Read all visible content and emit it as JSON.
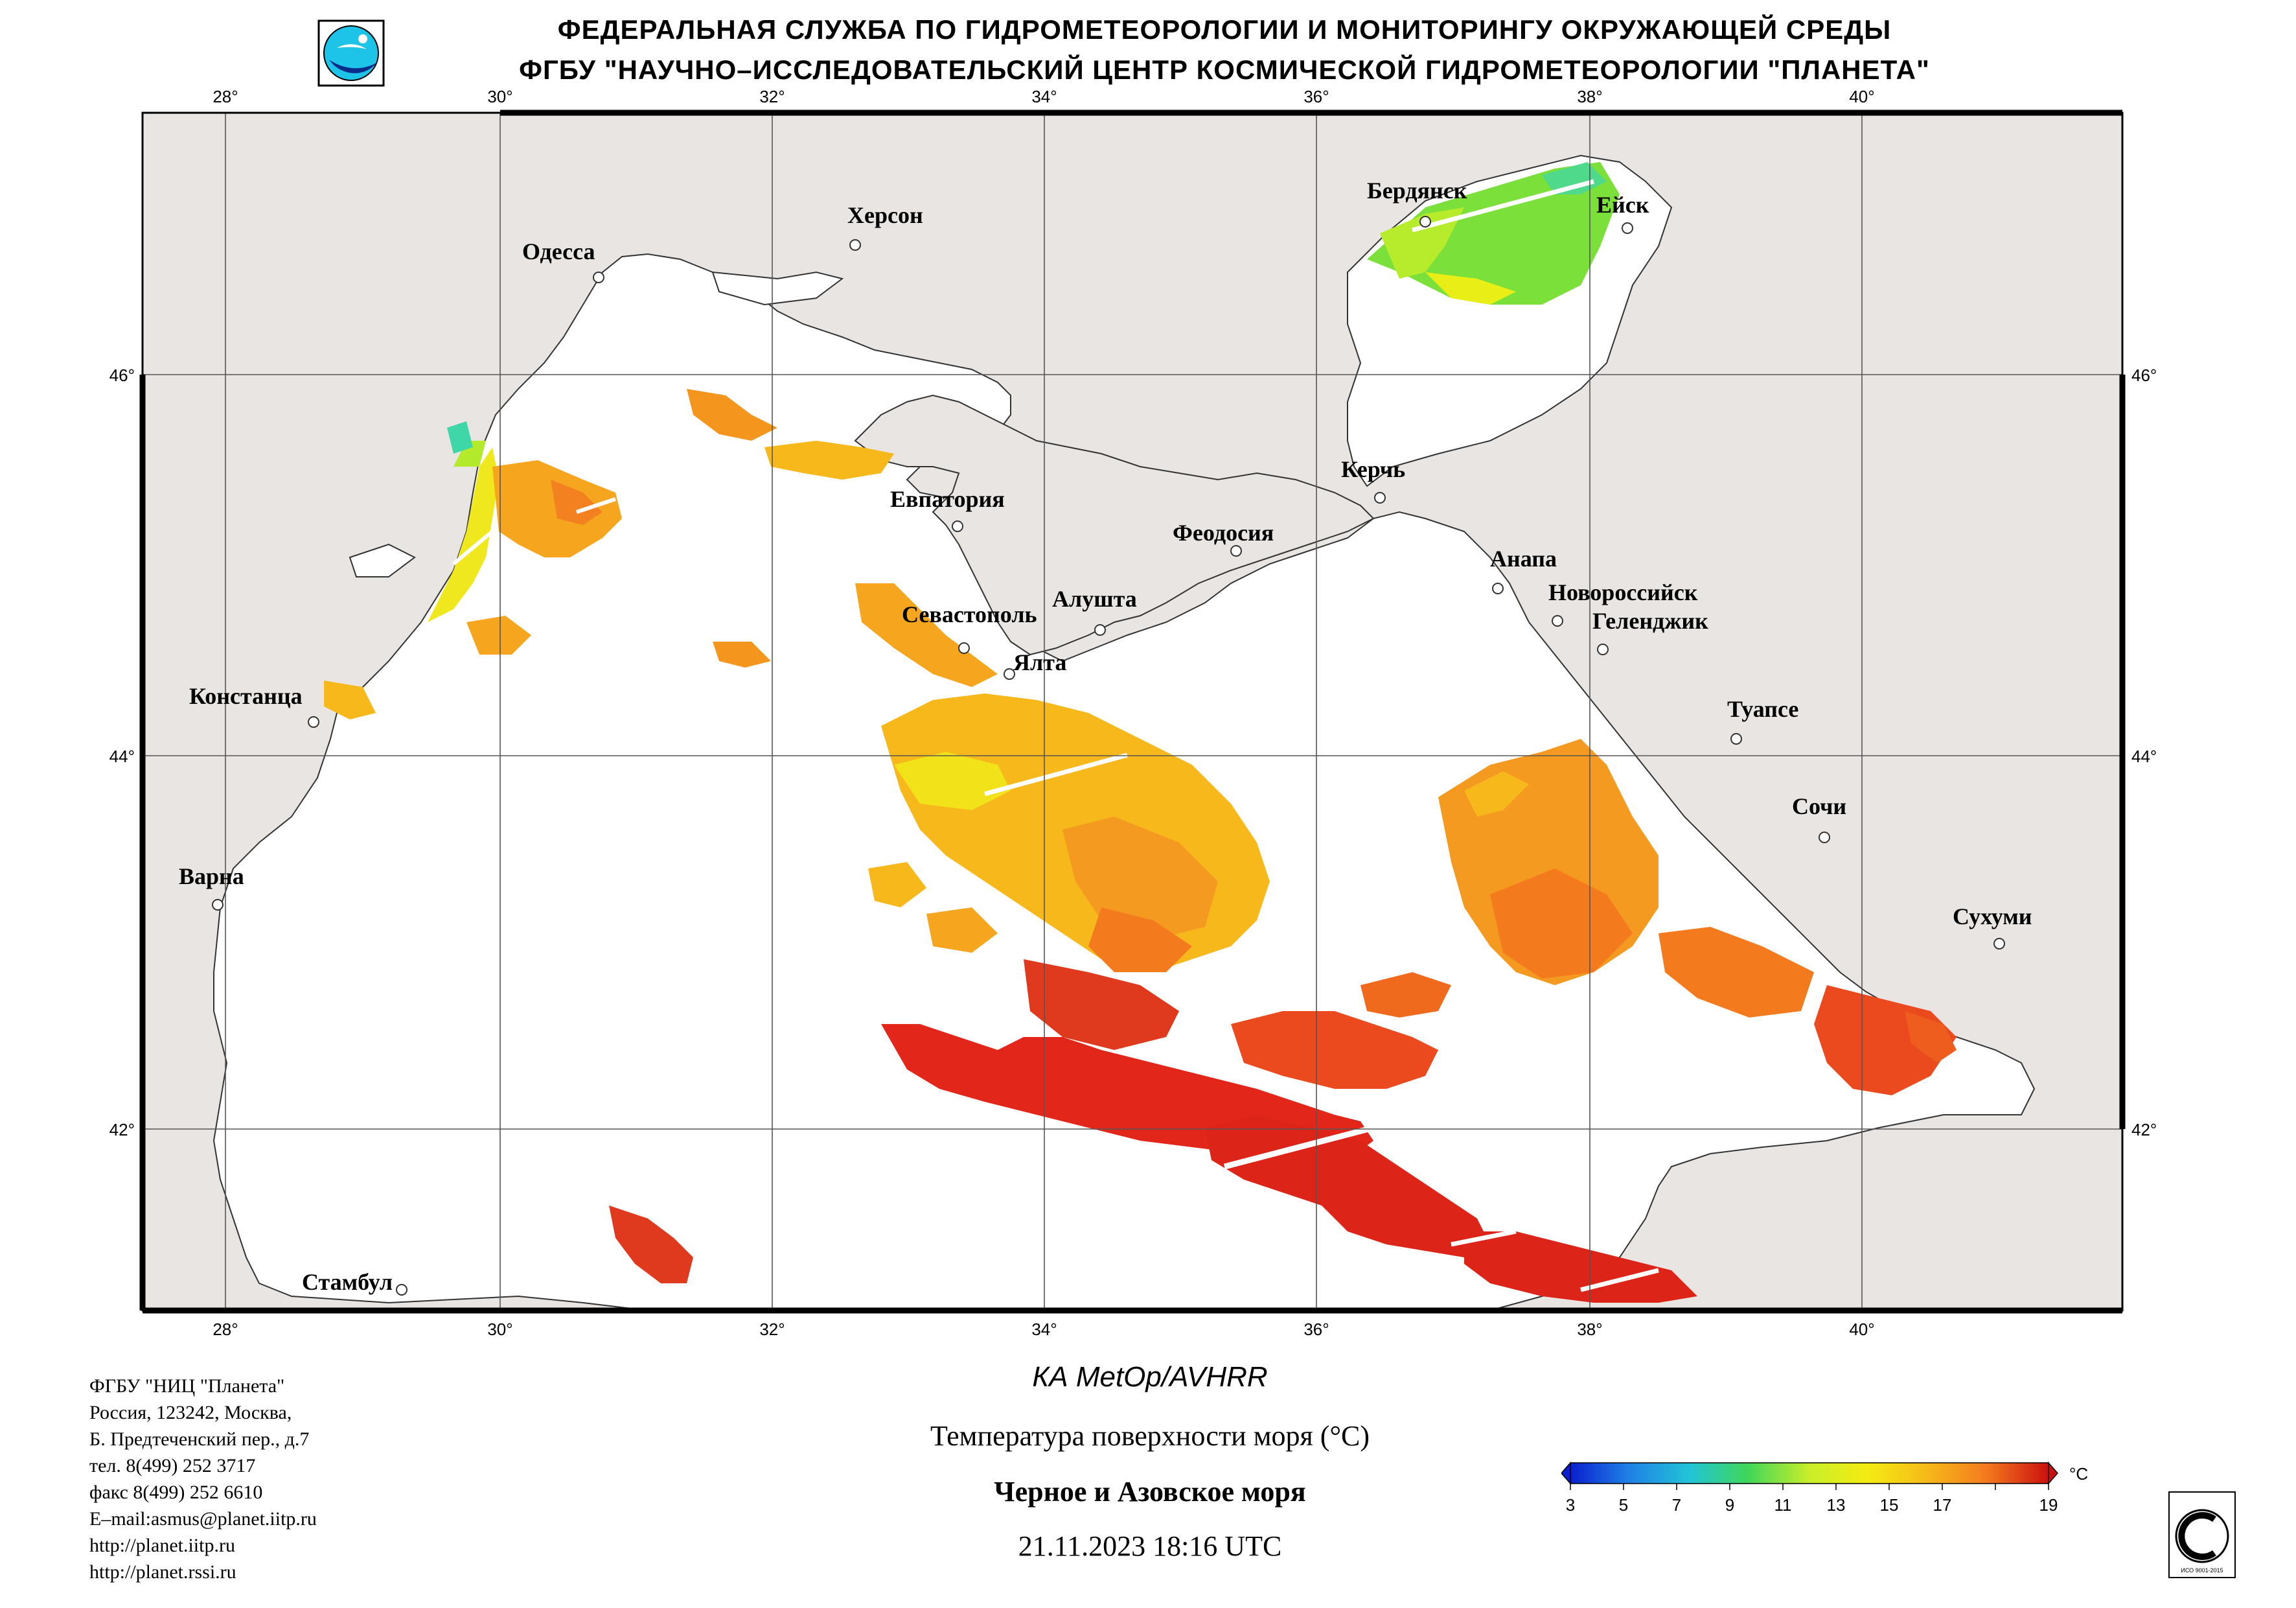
{
  "header": {
    "line1": "ФЕДЕРАЛЬНАЯ СЛУЖБА ПО ГИДРОМЕТЕОРОЛОГИИ И МОНИТОРИНГУ ОКРУЖАЮЩЕЙ СРЕДЫ",
    "line2": "ФГБУ \"НАУЧНО–ИССЛЕДОВАТЕЛЬСКИЙ ЦЕНТР КОСМИЧЕСКОЙ ГИДРОМЕТЕОРОЛОГИИ \"ПЛАНЕТА\""
  },
  "map": {
    "lon_ticks": [
      "28°",
      "30°",
      "32°",
      "34°",
      "36°",
      "38°",
      "40°"
    ],
    "lat_ticks": [
      "46°",
      "44°",
      "42°"
    ],
    "cities": [
      {
        "name": "Одесса"
      },
      {
        "name": "Херсон"
      },
      {
        "name": "Бердянск"
      },
      {
        "name": "Ейск"
      },
      {
        "name": "Евпатория"
      },
      {
        "name": "Керчь"
      },
      {
        "name": "Феодосия"
      },
      {
        "name": "Анапа"
      },
      {
        "name": "Новороссийск"
      },
      {
        "name": "Геленджик"
      },
      {
        "name": "Алушта"
      },
      {
        "name": "Севастополь"
      },
      {
        "name": "Ялта"
      },
      {
        "name": "Констанца"
      },
      {
        "name": "Туапсе"
      },
      {
        "name": "Сочи"
      },
      {
        "name": "Варна"
      },
      {
        "name": "Сухуми"
      },
      {
        "name": "Стамбул"
      }
    ],
    "colors": {
      "land": "#e8e5e2",
      "sea": "#ffffff",
      "border": "#000000"
    }
  },
  "footer": {
    "contact": [
      "ФГБУ \"НИЦ \"Планета\"",
      "Россия, 123242, Москва,",
      "Б. Предтеченский пер., д.7",
      "тел. 8(499) 252 3717",
      "факс 8(499) 252 6610",
      "E–mail:asmus@planet.iitp.ru",
      "http://planet.iitp.ru",
      "http://planet.rssi.ru"
    ],
    "sensor": "КА MetOp/AVHRR",
    "product": "Температура поверхности моря (°С)",
    "region": "Черное и Азовское моря",
    "datetime": "21.11.2023 18:16 UTC"
  },
  "colorbar": {
    "unit": "°C",
    "ticks": [
      "3",
      "5",
      "7",
      "9",
      "11",
      "13",
      "15",
      "17",
      "19"
    ],
    "colors": [
      "#0a1fcf",
      "#1f7fe6",
      "#22c4d6",
      "#3fd65a",
      "#c9ee2a",
      "#f4ec12",
      "#f6b81a",
      "#f47a1e",
      "#e43a1d",
      "#cc1010"
    ]
  },
  "logo": {
    "icon": "planeta-logo-icon"
  },
  "certificate": {
    "icon": "iso-certificate-icon",
    "text": "ИСО 9001-2015"
  }
}
